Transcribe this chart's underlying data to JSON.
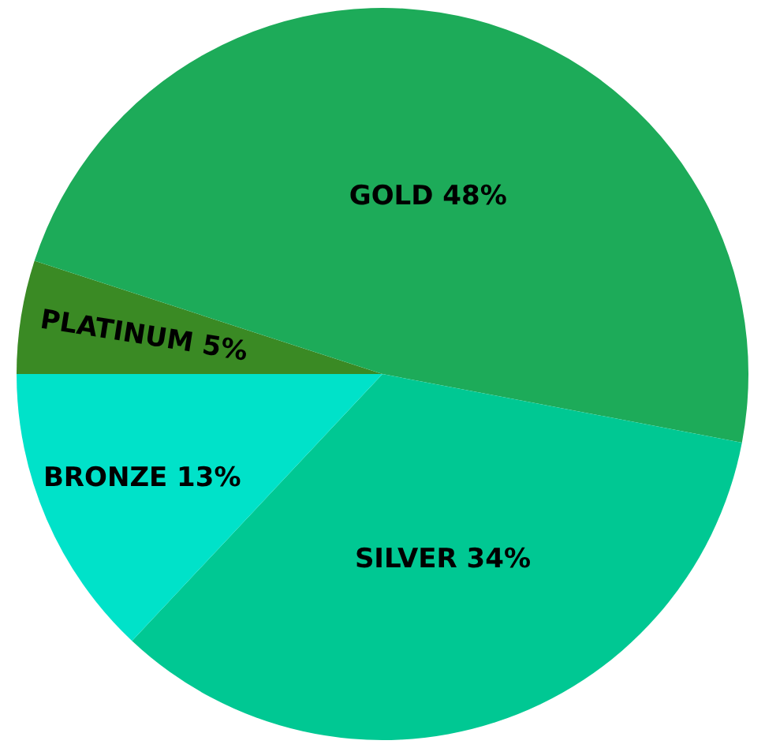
{
  "chart_data": {
    "type": "pie",
    "categories": [
      "PLATINUM",
      "GOLD",
      "SILVER",
      "BRONZE"
    ],
    "values": [
      5,
      48,
      34,
      13
    ],
    "value_labels": [
      "5%",
      "48%",
      "34%",
      "13%"
    ],
    "colors": [
      "#3a8a24",
      "#1dab59",
      "#00c893",
      "#00e2c9"
    ],
    "legend": false
  }
}
